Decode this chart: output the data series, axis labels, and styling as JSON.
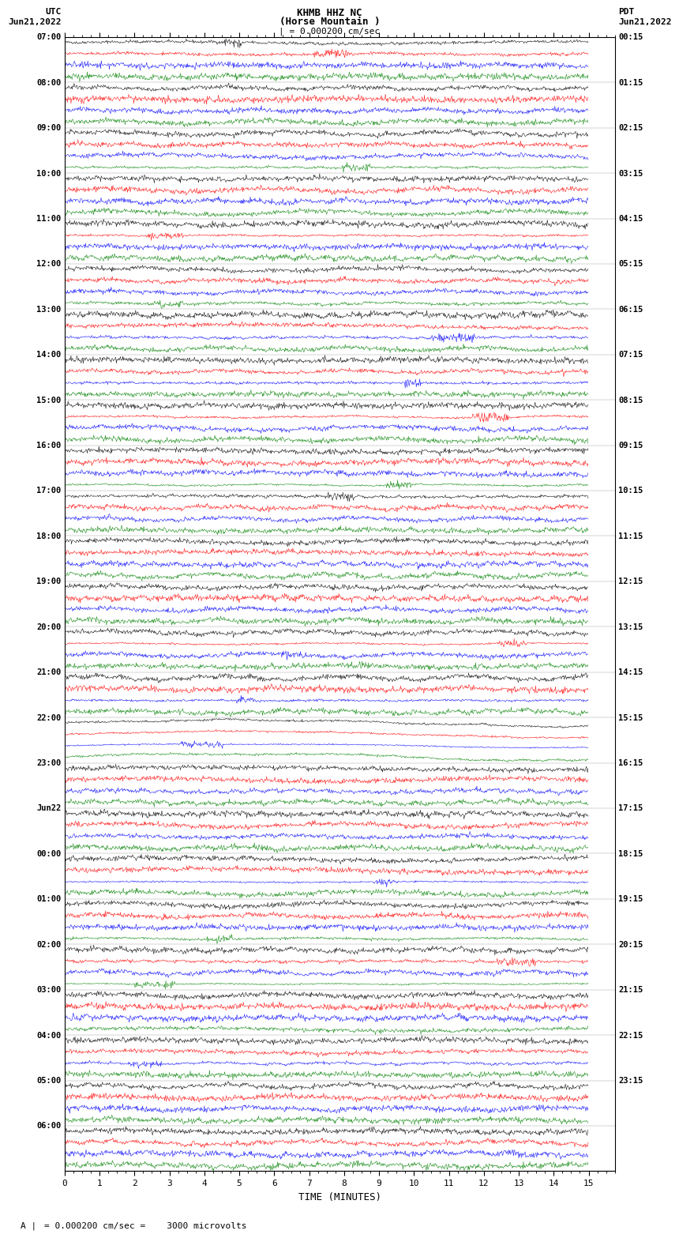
{
  "title_line1": "KHMB HHZ NC",
  "title_line2": "(Horse Mountain )",
  "title_line3": "| = 0.000200 cm/sec",
  "label_utc": "UTC",
  "label_pdt": "PDT",
  "label_date_left": "Jun21,2022",
  "label_date_right": "Jun21,2022",
  "xlabel": "TIME (MINUTES)",
  "scale_text": "= 0.000200 cm/sec =    3000 microvolts",
  "fig_width": 8.5,
  "fig_height": 16.13,
  "dpi": 100,
  "background_color": "#ffffff",
  "trace_colors": [
    "black",
    "red",
    "blue",
    "green"
  ],
  "n_traces_per_row": 4,
  "time_minutes": 15,
  "left_labels_utc": [
    "07:00",
    "08:00",
    "09:00",
    "10:00",
    "11:00",
    "12:00",
    "13:00",
    "14:00",
    "15:00",
    "16:00",
    "17:00",
    "18:00",
    "19:00",
    "20:00",
    "21:00",
    "22:00",
    "23:00",
    "Jun22",
    "00:00",
    "01:00",
    "02:00",
    "03:00",
    "04:00",
    "05:00",
    "06:00"
  ],
  "right_labels_pdt": [
    "00:15",
    "01:15",
    "02:15",
    "03:15",
    "04:15",
    "05:15",
    "06:15",
    "07:15",
    "08:15",
    "09:15",
    "10:15",
    "11:15",
    "12:15",
    "13:15",
    "14:15",
    "15:15",
    "16:15",
    "17:15",
    "18:15",
    "19:15",
    "20:15",
    "21:15",
    "22:15",
    "23:15"
  ],
  "n_rows": 25,
  "seed": 42,
  "noise_scale": 0.3
}
